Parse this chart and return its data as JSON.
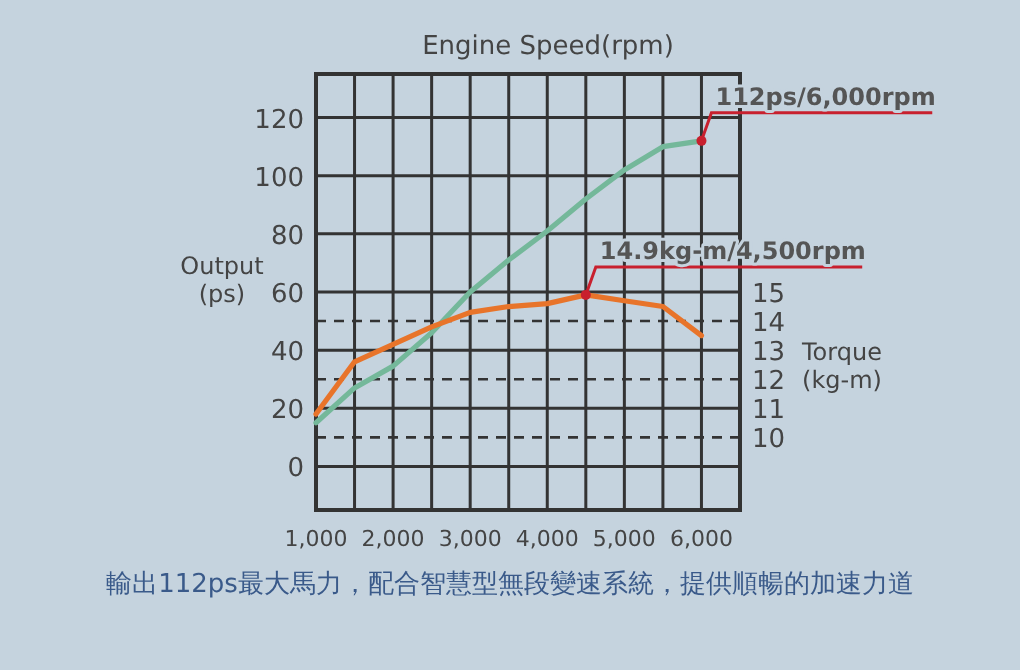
{
  "chart_data": {
    "type": "line",
    "xlabel": "Engine Speed(rpm)",
    "ylabel": "Output (ps)",
    "y2label": "Torque (kg-m)",
    "x": [
      1000,
      1500,
      2000,
      2500,
      3000,
      3500,
      4000,
      4500,
      5000,
      5500,
      6000
    ],
    "series": [
      {
        "color": "#74b89a",
        "values": [
          15,
          27,
          34.5,
          46,
          60,
          71,
          81,
          92,
          102,
          110,
          112
        ]
      },
      {
        "color": "#e8742a",
        "axis": "y2",
        "values": [
          10.8,
          12.6,
          13.2,
          13.8,
          14.3,
          14.5,
          14.6,
          14.9,
          14.7,
          14.5,
          13.5
        ]
      }
    ],
    "xlim": [
      1000,
      6500
    ],
    "xticks": [
      {
        "value": 1000,
        "label": "1,000"
      },
      {
        "value": 1500,
        "label": null
      },
      {
        "value": 2000,
        "label": "2,000"
      },
      {
        "value": 2500,
        "label": null
      },
      {
        "value": 3000,
        "label": "3,000"
      },
      {
        "value": 3500,
        "label": null
      },
      {
        "value": 4000,
        "label": "4,000"
      },
      {
        "value": 4500,
        "label": null
      },
      {
        "value": 5000,
        "label": "5,000"
      },
      {
        "value": 5500,
        "label": null
      },
      {
        "value": 6000,
        "label": "6,000"
      },
      {
        "value": 6500,
        "label": null
      }
    ],
    "ylim": [
      -15,
      135
    ],
    "yticks": [
      0,
      {
        "value": 10,
        "label": null
      },
      20,
      {
        "value": 30,
        "label": null
      },
      40,
      {
        "value": 50,
        "label": null
      },
      60,
      80,
      100,
      120
    ],
    "y2lim": [
      7.5,
      22.5
    ],
    "y2ticks": [
      10,
      11,
      12,
      13,
      14,
      15
    ],
    "grid": true,
    "marker": "none",
    "line_style": "solid",
    "annotations": [
      {
        "text": "112ps/6,000rpm",
        "x": 6000,
        "y": 112
      },
      {
        "text": "14.9kg-m/4,500rpm",
        "x": 4500,
        "y": 59
      },
      "輸出112ps最大馬力，配合智慧型無段變速系統，提供順暢的加速力道"
    ]
  }
}
